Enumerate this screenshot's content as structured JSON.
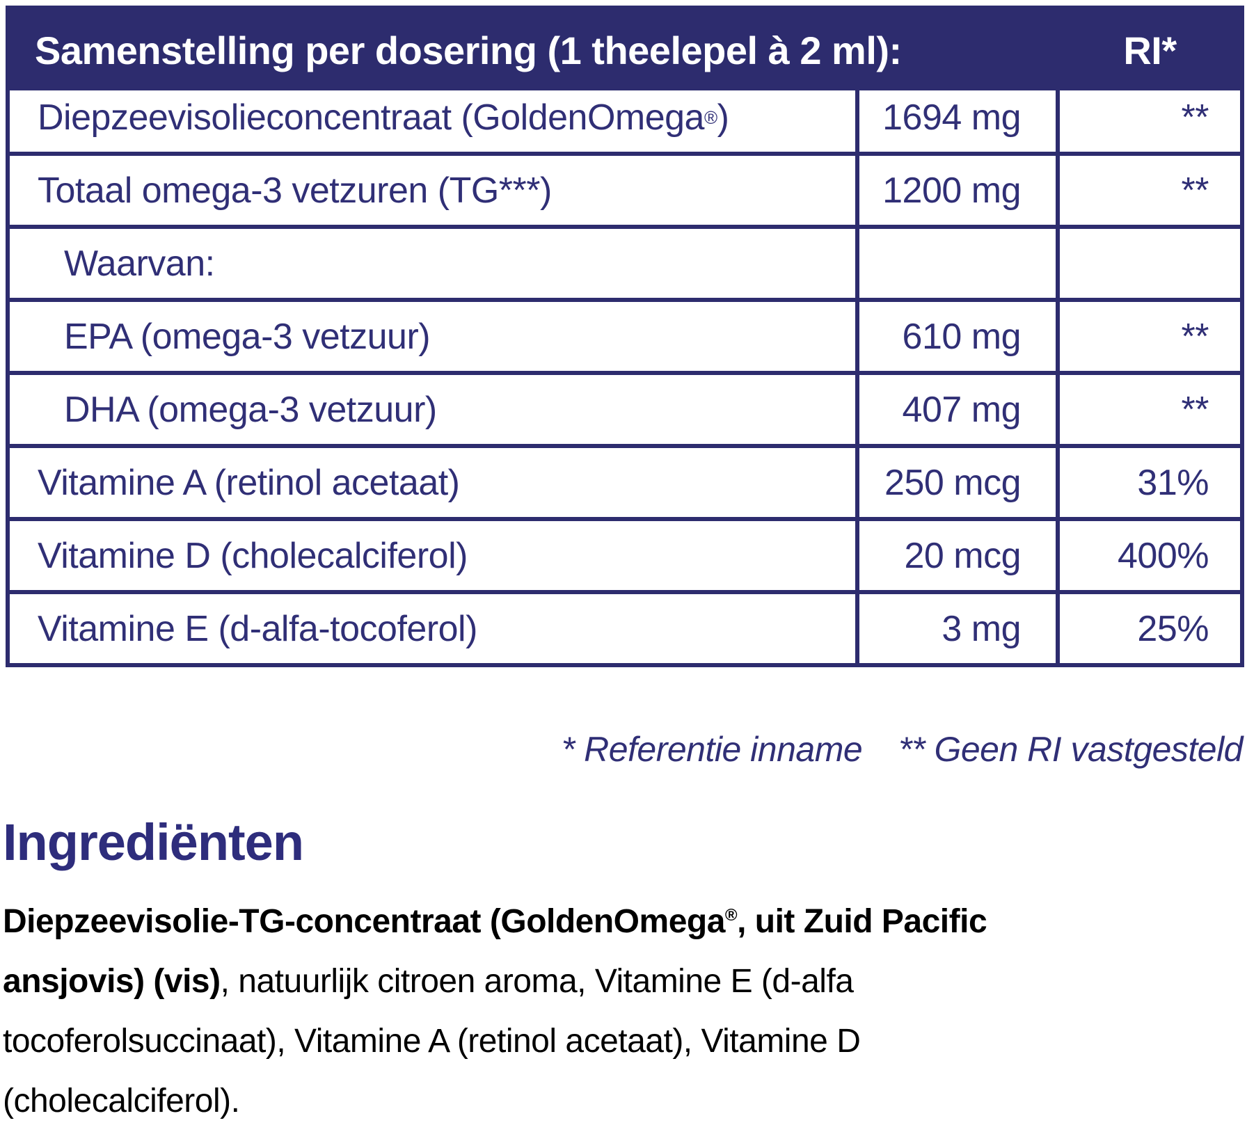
{
  "colors": {
    "navy_band": "#2d2c6e",
    "navy_text": "#302f76",
    "heading_indigo": "#2e2d7c",
    "body_black": "#000000",
    "white": "#ffffff"
  },
  "table": {
    "header": {
      "title": "Samenstelling per dosering (1 theelepel à 2 ml):",
      "ri_label": "RI*"
    },
    "rows": [
      {
        "label": "Diepzeevisolieconcentraat (GoldenOmega®)",
        "amount": "1694 mg",
        "ri": "**",
        "indent": false
      },
      {
        "label": "Totaal omega-3 vetzuren (TG***)",
        "amount": "1200 mg",
        "ri": "**",
        "indent": false
      },
      {
        "label": "Waarvan:",
        "amount": "",
        "ri": "",
        "indent": true
      },
      {
        "label": "EPA (omega-3 vetzuur)",
        "amount": "610 mg",
        "ri": "**",
        "indent": true
      },
      {
        "label": "DHA (omega-3 vetzuur)",
        "amount": "407 mg",
        "ri": "**",
        "indent": true
      },
      {
        "label": "Vitamine A (retinol acetaat)",
        "amount": "250 mcg",
        "ri": "31%",
        "indent": false
      },
      {
        "label": "Vitamine D (cholecalciferol)",
        "amount": "20 mcg",
        "ri": "400%",
        "indent": false
      },
      {
        "label": "Vitamine E (d-alfa-tocoferol)",
        "amount": "3 mg",
        "ri": "25%",
        "indent": false
      }
    ]
  },
  "footnote": {
    "reference": "* Referentie inname",
    "no_ri": "** Geen RI vastgesteld"
  },
  "ingredients": {
    "heading": "Ingrediënten",
    "segments": [
      {
        "text": "Diepzeevisolie-TG-concentraat (GoldenOmega®, uit Zuid Pacific ansjovis) (vis)",
        "bold": true
      },
      {
        "text": ", natuurlijk citroen aroma, Vitamine E (d-alfa tocoferolsuccinaat), Vitamine A (retinol acetaat), Vitamine D (cholecalciferol).",
        "bold": false
      }
    ]
  }
}
